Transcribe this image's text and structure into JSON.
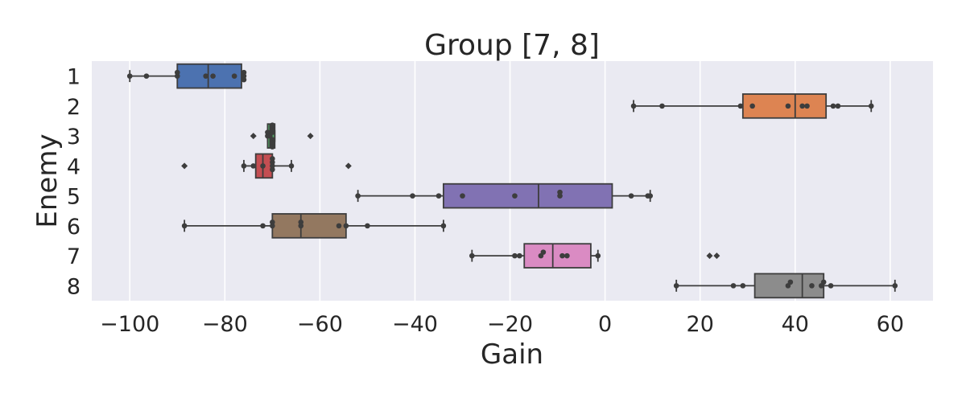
{
  "chart_data": {
    "type": "boxplot",
    "orientation": "horizontal",
    "title": "Group [7, 8]",
    "xlabel": "Gain",
    "ylabel": "Enemy",
    "xlim": [
      -108,
      69
    ],
    "xticks": [
      -100,
      -80,
      -60,
      -40,
      -20,
      0,
      20,
      40,
      60
    ],
    "xtick_labels": [
      "−100",
      "−80",
      "−60",
      "−40",
      "−20",
      "0",
      "20",
      "40",
      "60"
    ],
    "grid": true,
    "background": "#eaeaf2",
    "categories": [
      "1",
      "2",
      "3",
      "4",
      "5",
      "6",
      "7",
      "8"
    ],
    "boxes": [
      {
        "category": "1",
        "color": "#4c72b0",
        "q1": -90,
        "median": -83.5,
        "q3": -76.5,
        "whisker_low": -100,
        "whisker_high": -76,
        "fliers": [],
        "points": [
          -100,
          -96.5,
          -90,
          -90,
          -84,
          -82.5,
          -78,
          -76,
          -76,
          -76
        ]
      },
      {
        "category": "2",
        "color": "#dd8452",
        "q1": 29,
        "median": 40,
        "q3": 46.5,
        "whisker_low": 6,
        "whisker_high": 56,
        "fliers": [],
        "points": [
          6,
          12,
          28.5,
          31,
          38.5,
          41.5,
          42.5,
          48,
          49,
          56
        ]
      },
      {
        "category": "3",
        "color": "#55a868",
        "q1": -71,
        "median": -70.5,
        "q3": -69.5,
        "whisker_low": -71,
        "whisker_high": -69.5,
        "fliers": [
          -74,
          -62
        ],
        "points": [
          -71,
          -71,
          -70.5,
          -70,
          -70,
          -70,
          -70,
          -70,
          -70
        ]
      },
      {
        "category": "4",
        "color": "#c44e52",
        "q1": -73.5,
        "median": -72,
        "q3": -70,
        "whisker_low": -76,
        "whisker_high": -66,
        "fliers": [
          -88.5,
          -54
        ],
        "points": [
          -76,
          -74,
          -72,
          -70,
          -70,
          -70,
          -70,
          -66
        ]
      },
      {
        "category": "5",
        "color": "#8172b3",
        "q1": -34,
        "median": -14,
        "q3": 1.5,
        "whisker_low": -52,
        "whisker_high": 9.5,
        "fliers": [],
        "points": [
          -52,
          -40.5,
          -35,
          -30,
          -19,
          -9.5,
          -9.5,
          5.5,
          9,
          9.5
        ]
      },
      {
        "category": "6",
        "color": "#937860",
        "q1": -70,
        "median": -64,
        "q3": -54.5,
        "whisker_low": -88.5,
        "whisker_high": -34,
        "fliers": [],
        "points": [
          -88.5,
          -72,
          -70,
          -70,
          -64,
          -64,
          -56,
          -54.5,
          -50,
          -34
        ]
      },
      {
        "category": "7",
        "color": "#da8bc3",
        "q1": -17,
        "median": -11,
        "q3": -3,
        "whisker_low": -28,
        "whisker_high": -1.5,
        "fliers": [
          22,
          23.5
        ],
        "points": [
          -28,
          -19,
          -18,
          -13.5,
          -13,
          -9,
          -8,
          -1.5
        ]
      },
      {
        "category": "8",
        "color": "#8c8c8c",
        "q1": 31.5,
        "median": 41.5,
        "q3": 46,
        "whisker_low": 15,
        "whisker_high": 61,
        "fliers": [],
        "points": [
          15,
          27,
          29,
          38.5,
          39,
          43.5,
          45.5,
          46,
          47.5,
          61
        ]
      }
    ]
  }
}
